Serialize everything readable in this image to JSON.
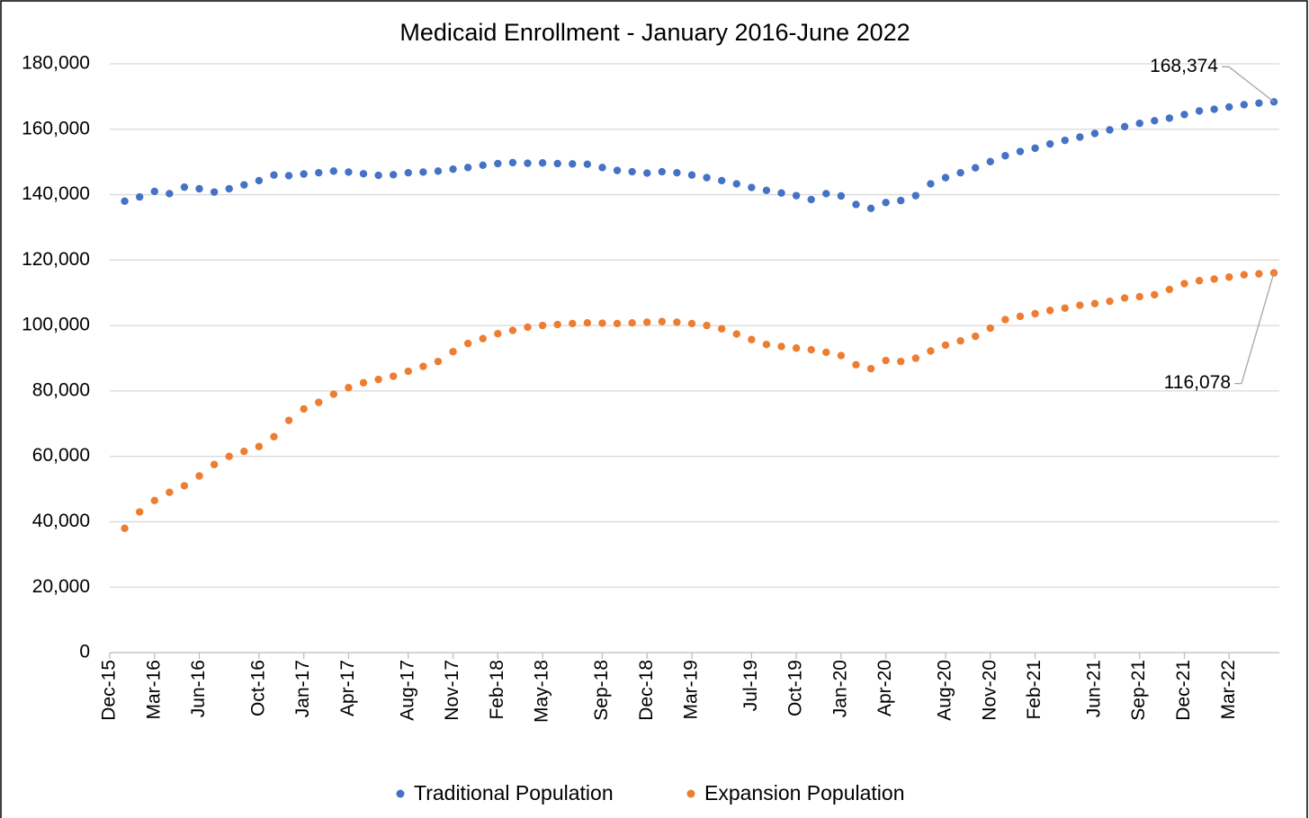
{
  "chart_data": {
    "type": "scatter",
    "title": "Medicaid Enrollment - January 2016-June 2022",
    "x": [
      "2016-01",
      "2016-02",
      "2016-03",
      "2016-04",
      "2016-05",
      "2016-06",
      "2016-07",
      "2016-08",
      "2016-09",
      "2016-10",
      "2016-11",
      "2016-12",
      "2017-01",
      "2017-02",
      "2017-03",
      "2017-04",
      "2017-05",
      "2017-06",
      "2017-07",
      "2017-08",
      "2017-09",
      "2017-10",
      "2017-11",
      "2017-12",
      "2018-01",
      "2018-02",
      "2018-03",
      "2018-04",
      "2018-05",
      "2018-06",
      "2018-07",
      "2018-08",
      "2018-09",
      "2018-10",
      "2018-11",
      "2018-12",
      "2019-01",
      "2019-02",
      "2019-03",
      "2019-04",
      "2019-05",
      "2019-06",
      "2019-07",
      "2019-08",
      "2019-09",
      "2019-10",
      "2019-11",
      "2019-12",
      "2020-01",
      "2020-02",
      "2020-03",
      "2020-04",
      "2020-05",
      "2020-06",
      "2020-07",
      "2020-08",
      "2020-09",
      "2020-10",
      "2020-11",
      "2020-12",
      "2021-01",
      "2021-02",
      "2021-03",
      "2021-04",
      "2021-05",
      "2021-06",
      "2021-07",
      "2021-08",
      "2021-09",
      "2021-10",
      "2021-11",
      "2021-12",
      "2022-01",
      "2022-02",
      "2022-03",
      "2022-04",
      "2022-05",
      "2022-06"
    ],
    "series": [
      {
        "name": "Traditional Population",
        "color": "#4472c4",
        "values": [
          138000,
          139300,
          141000,
          140300,
          142300,
          141800,
          140800,
          141800,
          143000,
          144300,
          146000,
          145800,
          146300,
          146700,
          147200,
          146900,
          146400,
          145900,
          146100,
          146700,
          146900,
          147200,
          147800,
          148300,
          149000,
          149500,
          149800,
          149600,
          149700,
          149500,
          149400,
          149300,
          148300,
          147400,
          147000,
          146600,
          147000,
          146700,
          146000,
          145200,
          144300,
          143300,
          142200,
          141300,
          140500,
          139700,
          138500,
          140300,
          139600,
          137000,
          135800,
          137600,
          138200,
          139700,
          143300,
          145200,
          146700,
          148200,
          150100,
          151900,
          153200,
          154200,
          155500,
          156600,
          157600,
          158700,
          159800,
          160800,
          161800,
          162600,
          163400,
          164500,
          165600,
          166100,
          166800,
          167500,
          168000,
          168374
        ],
        "value_labels": [
          null,
          null,
          null,
          null,
          null,
          null,
          null,
          null,
          null,
          null,
          null,
          null,
          null,
          null,
          null,
          null,
          null,
          null,
          null,
          null,
          null,
          null,
          null,
          null,
          null,
          null,
          null,
          null,
          null,
          null,
          null,
          null,
          null,
          null,
          null,
          null,
          null,
          null,
          null,
          null,
          null,
          null,
          null,
          null,
          null,
          null,
          null,
          null,
          null,
          null,
          null,
          null,
          null,
          null,
          null,
          null,
          null,
          null,
          null,
          null,
          null,
          null,
          null,
          null,
          null,
          null,
          null,
          null,
          null,
          null,
          null,
          null,
          null,
          null,
          null,
          null,
          null,
          "168,374"
        ]
      },
      {
        "name": "Expansion Population",
        "color": "#ed7d31",
        "values": [
          38000,
          43000,
          46500,
          49000,
          51000,
          54000,
          57500,
          60000,
          61500,
          63000,
          66000,
          71000,
          74500,
          76500,
          79000,
          81000,
          82500,
          83500,
          84500,
          86000,
          87500,
          89000,
          92000,
          94500,
          96000,
          97500,
          98500,
          99500,
          100000,
          100300,
          100600,
          100800,
          100700,
          100600,
          100800,
          101000,
          101200,
          101000,
          100600,
          100000,
          99000,
          97400,
          95700,
          94200,
          93600,
          93100,
          92600,
          91800,
          90800,
          88000,
          86800,
          89300,
          89000,
          90000,
          92200,
          94000,
          95300,
          96700,
          99200,
          101800,
          102800,
          103600,
          104600,
          105300,
          106200,
          106700,
          107400,
          108400,
          108800,
          109400,
          111000,
          112800,
          113700,
          114200,
          114800,
          115500,
          115800,
          116078
        ],
        "value_labels": [
          null,
          null,
          null,
          null,
          null,
          null,
          null,
          null,
          null,
          null,
          null,
          null,
          null,
          null,
          null,
          null,
          null,
          null,
          null,
          null,
          null,
          null,
          null,
          null,
          null,
          null,
          null,
          null,
          null,
          null,
          null,
          null,
          null,
          null,
          null,
          null,
          null,
          null,
          null,
          null,
          null,
          null,
          null,
          null,
          null,
          null,
          null,
          null,
          null,
          null,
          null,
          null,
          null,
          null,
          null,
          null,
          null,
          null,
          null,
          null,
          null,
          null,
          null,
          null,
          null,
          null,
          null,
          null,
          null,
          null,
          null,
          null,
          null,
          null,
          null,
          null,
          null,
          "116,078"
        ]
      }
    ],
    "xlim": [
      "2015-12",
      "2022-06"
    ],
    "xticks": [
      {
        "value": "2015-12",
        "label": "Dec-15"
      },
      {
        "value": "2016-03",
        "label": "Mar-16"
      },
      {
        "value": "2016-06",
        "label": "Jun-16"
      },
      {
        "value": "2016-10",
        "label": "Oct-16"
      },
      {
        "value": "2017-01",
        "label": "Jan-17"
      },
      {
        "value": "2017-04",
        "label": "Apr-17"
      },
      {
        "value": "2017-08",
        "label": "Aug-17"
      },
      {
        "value": "2017-11",
        "label": "Nov-17"
      },
      {
        "value": "2018-02",
        "label": "Feb-18"
      },
      {
        "value": "2018-05",
        "label": "May-18"
      },
      {
        "value": "2018-09",
        "label": "Sep-18"
      },
      {
        "value": "2018-12",
        "label": "Dec-18"
      },
      {
        "value": "2019-03",
        "label": "Mar-19"
      },
      {
        "value": "2019-07",
        "label": "Jul-19"
      },
      {
        "value": "2019-10",
        "label": "Oct-19"
      },
      {
        "value": "2020-01",
        "label": "Jan-20"
      },
      {
        "value": "2020-04",
        "label": "Apr-20"
      },
      {
        "value": "2020-08",
        "label": "Aug-20"
      },
      {
        "value": "2020-11",
        "label": "Nov-20"
      },
      {
        "value": "2021-02",
        "label": "Feb-21"
      },
      {
        "value": "2021-06",
        "label": "Jun-21"
      },
      {
        "value": "2021-09",
        "label": "Sep-21"
      },
      {
        "value": "2021-12",
        "label": "Dec-21"
      },
      {
        "value": "2022-03",
        "label": "Mar-22"
      }
    ],
    "ylim": [
      0,
      180000
    ],
    "yticks": [
      0,
      {
        "value": 20000,
        "label": "20,000"
      },
      {
        "value": 40000,
        "label": "40,000"
      },
      {
        "value": 60000,
        "label": "60,000"
      },
      {
        "value": 80000,
        "label": "80,000"
      },
      {
        "value": 100000,
        "label": "100,000"
      },
      {
        "value": 120000,
        "label": "120,000"
      },
      {
        "value": 140000,
        "label": "140,000"
      },
      {
        "value": 160000,
        "label": "160,000"
      },
      {
        "value": 180000,
        "label": "180,000"
      }
    ],
    "grid": true,
    "legend": "bottom"
  }
}
